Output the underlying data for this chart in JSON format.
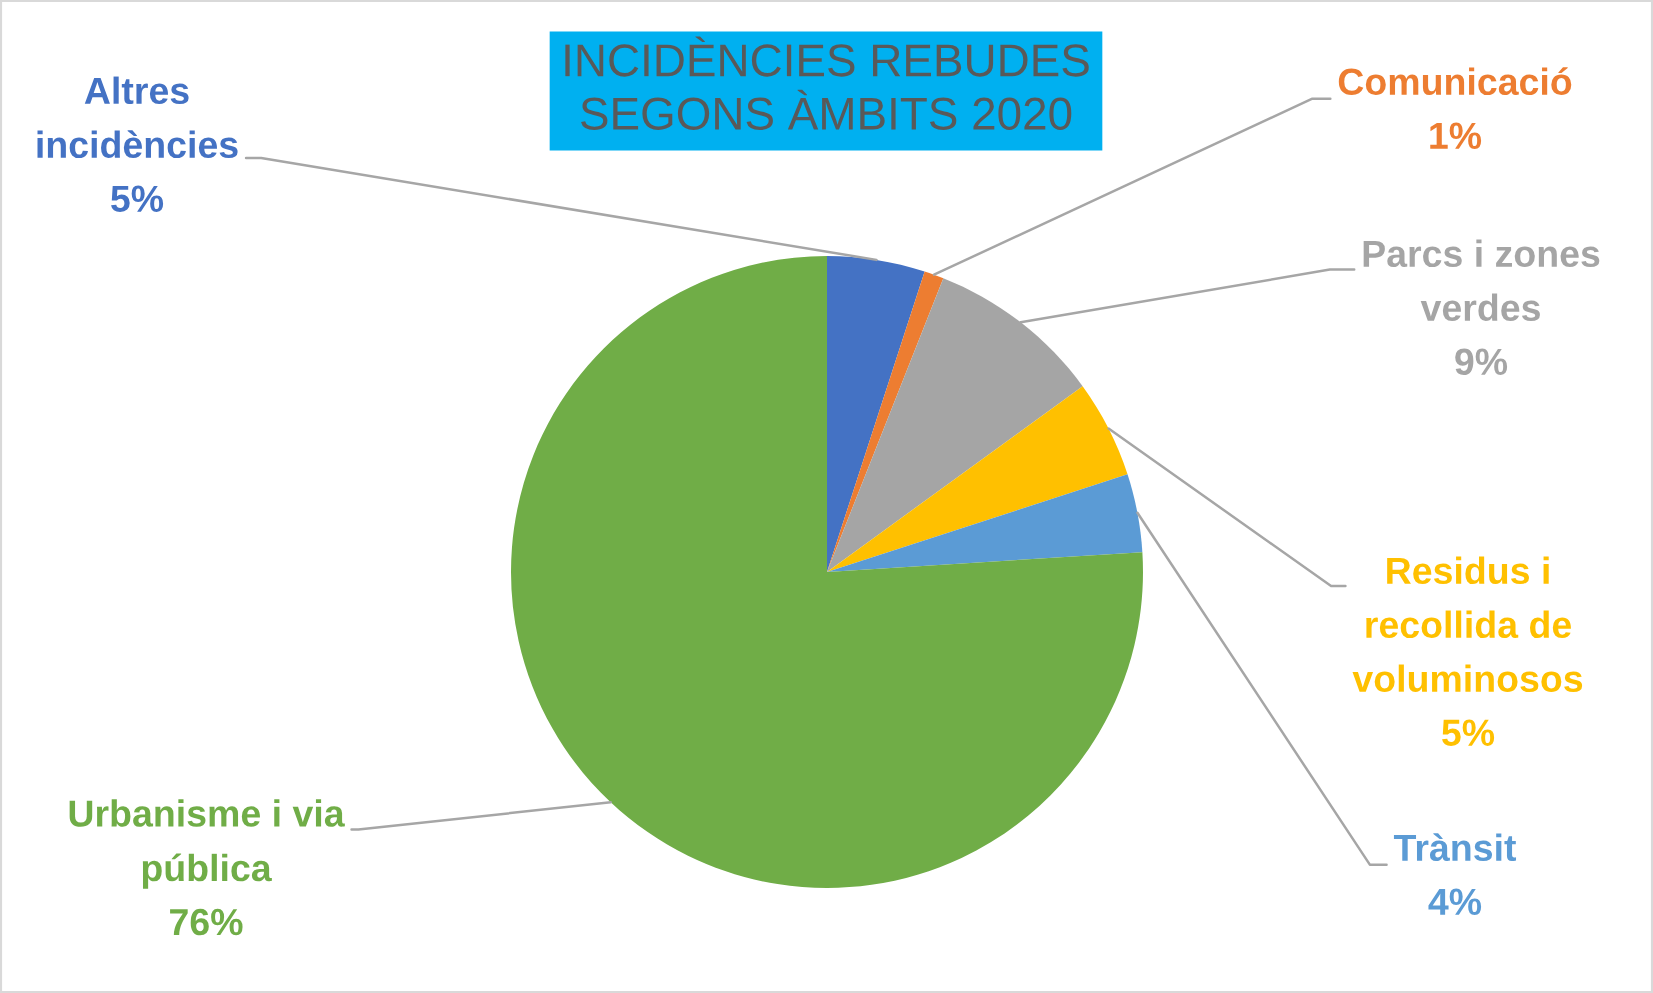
{
  "chart_data": {
    "type": "pie",
    "title": "INCIDÈNCIES REBUDES SEGONS ÀMBITS 2020",
    "categories": [
      "Altres incidències",
      "Comunicació",
      "Parcs i zones verdes",
      "Residus i recollida de voluminosos",
      "Trànsit",
      "Urbanisme i via pública"
    ],
    "values": [
      5,
      1,
      9,
      5,
      4,
      76
    ],
    "colors": [
      "#4472c4",
      "#ed7d31",
      "#a5a5a5",
      "#ffc000",
      "#5b9bd5",
      "#70ad47"
    ],
    "value_labels": [
      "5%",
      "1%",
      "9%",
      "5%",
      "4%",
      "76%"
    ]
  }
}
